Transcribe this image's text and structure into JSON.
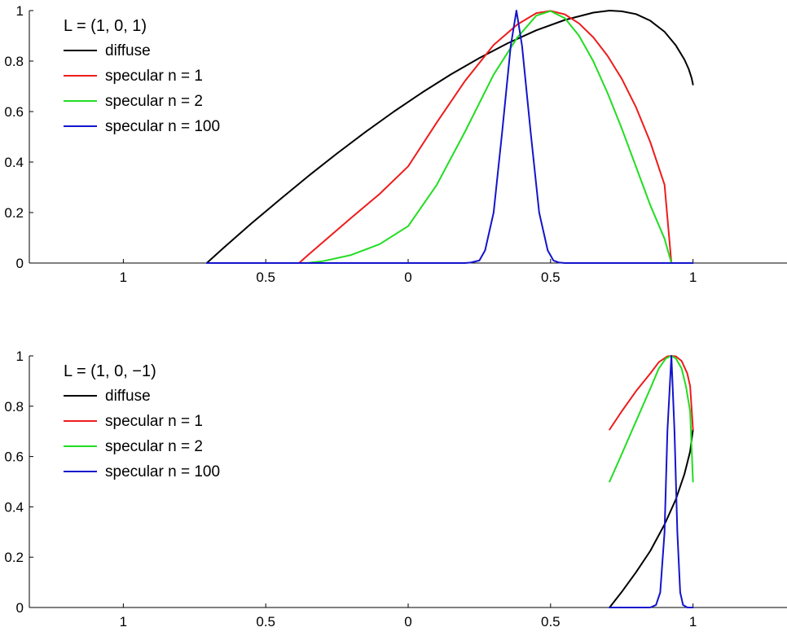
{
  "colors": {
    "diffuse": "#000000",
    "specular_n1": "#ee1c1c",
    "specular_n2": "#22dd22",
    "specular_n100": "#1414cc",
    "axis": "#000000",
    "background": "#ffffff"
  },
  "chart_data": [
    {
      "type": "line",
      "title": "",
      "legend_title": "L = (1, 0, 1)",
      "legend_placement": "top-left",
      "grid": false,
      "xlabel": "",
      "ylabel": "",
      "xlim": [
        -1.33,
        1.33
      ],
      "ylim": [
        0,
        1
      ],
      "x_ticks": [
        -1,
        -0.5,
        0,
        0.5,
        1
      ],
      "x_tick_labels": [
        "1",
        "0.5",
        "0",
        "0.5",
        "1"
      ],
      "y_ticks": [
        0,
        0.2,
        0.4,
        0.6,
        0.8,
        1
      ],
      "y_tick_labels": [
        "0",
        "0.2",
        "0.4",
        "0.6",
        "0.8",
        "1"
      ],
      "series": [
        {
          "name": "diffuse",
          "color_key": "diffuse",
          "points": [
            [
              -0.707,
              0.0
            ],
            [
              -0.65,
              0.058
            ],
            [
              -0.55,
              0.157
            ],
            [
              -0.45,
              0.252
            ],
            [
              -0.35,
              0.345
            ],
            [
              -0.25,
              0.434
            ],
            [
              -0.15,
              0.519
            ],
            [
              -0.05,
              0.6
            ],
            [
              0.05,
              0.676
            ],
            [
              0.15,
              0.747
            ],
            [
              0.25,
              0.812
            ],
            [
              0.35,
              0.871
            ],
            [
              0.45,
              0.922
            ],
            [
              0.55,
              0.963
            ],
            [
              0.65,
              0.992
            ],
            [
              0.707,
              1.0
            ],
            [
              0.75,
              0.997
            ],
            [
              0.8,
              0.986
            ],
            [
              0.85,
              0.96
            ],
            [
              0.9,
              0.916
            ],
            [
              0.94,
              0.862
            ],
            [
              0.97,
              0.806
            ],
            [
              0.985,
              0.768
            ],
            [
              0.995,
              0.733
            ],
            [
              1.0,
              0.707
            ]
          ]
        },
        {
          "name": "specular n = 1",
          "color_key": "specular_n1",
          "points": [
            [
              -0.383,
              0.0
            ],
            [
              -0.35,
              0.033
            ],
            [
              -0.3,
              0.082
            ],
            [
              -0.2,
              0.179
            ],
            [
              -0.1,
              0.274
            ],
            [
              0.0,
              0.383
            ],
            [
              0.1,
              0.556
            ],
            [
              0.2,
              0.722
            ],
            [
              0.3,
              0.864
            ],
            [
              0.383,
              0.945
            ],
            [
              0.45,
              0.99
            ],
            [
              0.5,
              0.999
            ],
            [
              0.55,
              0.985
            ],
            [
              0.6,
              0.949
            ],
            [
              0.65,
              0.894
            ],
            [
              0.7,
              0.821
            ],
            [
              0.75,
              0.73
            ],
            [
              0.8,
              0.617
            ],
            [
              0.85,
              0.479
            ],
            [
              0.9,
              0.31
            ],
            [
              0.924,
              0.0
            ]
          ]
        },
        {
          "name": "specular n = 2",
          "color_key": "specular_n2",
          "points": [
            [
              -0.383,
              0.0
            ],
            [
              -0.35,
              0.001
            ],
            [
              -0.3,
              0.007
            ],
            [
              -0.2,
              0.032
            ],
            [
              -0.1,
              0.075
            ],
            [
              0.0,
              0.146
            ],
            [
              0.1,
              0.309
            ],
            [
              0.2,
              0.521
            ],
            [
              0.3,
              0.746
            ],
            [
              0.383,
              0.893
            ],
            [
              0.45,
              0.98
            ],
            [
              0.5,
              0.998
            ],
            [
              0.55,
              0.97
            ],
            [
              0.6,
              0.9
            ],
            [
              0.65,
              0.799
            ],
            [
              0.7,
              0.674
            ],
            [
              0.75,
              0.533
            ],
            [
              0.8,
              0.381
            ],
            [
              0.85,
              0.229
            ],
            [
              0.9,
              0.096
            ],
            [
              0.924,
              0.0
            ]
          ]
        },
        {
          "name": "specular n = 100",
          "color_key": "specular_n100",
          "points": [
            [
              -0.707,
              0.0
            ],
            [
              0.2,
              0.0
            ],
            [
              0.22,
              0.002
            ],
            [
              0.25,
              0.01
            ],
            [
              0.27,
              0.05
            ],
            [
              0.3,
              0.2
            ],
            [
              0.33,
              0.52
            ],
            [
              0.36,
              0.86
            ],
            [
              0.38,
              1.0
            ],
            [
              0.4,
              0.86
            ],
            [
              0.43,
              0.52
            ],
            [
              0.46,
              0.2
            ],
            [
              0.49,
              0.05
            ],
            [
              0.51,
              0.01
            ],
            [
              0.53,
              0.002
            ],
            [
              0.55,
              0.0
            ],
            [
              1.0,
              0.0
            ]
          ]
        }
      ]
    },
    {
      "type": "line",
      "title": "",
      "legend_title": "L = (1, 0, −1)",
      "legend_placement": "top-left",
      "grid": false,
      "xlabel": "",
      "ylabel": "",
      "xlim": [
        -1.33,
        1.33
      ],
      "ylim": [
        0,
        1
      ],
      "x_ticks": [
        -1,
        -0.5,
        0,
        0.5,
        1
      ],
      "x_tick_labels": [
        "1",
        "0.5",
        "0",
        "0.5",
        "1"
      ],
      "y_ticks": [
        0,
        0.2,
        0.4,
        0.6,
        0.8,
        1
      ],
      "y_tick_labels": [
        "0",
        "0.2",
        "0.4",
        "0.6",
        "0.8",
        "1"
      ],
      "series": [
        {
          "name": "diffuse",
          "color_key": "diffuse",
          "points": [
            [
              0.707,
              0.0
            ],
            [
              0.75,
              0.062
            ],
            [
              0.8,
              0.14
            ],
            [
              0.85,
              0.225
            ],
            [
              0.9,
              0.33
            ],
            [
              0.94,
              0.43
            ],
            [
              0.97,
              0.53
            ],
            [
              0.99,
              0.62
            ],
            [
              1.0,
              0.707
            ]
          ]
        },
        {
          "name": "specular n = 1",
          "color_key": "specular_n1",
          "points": [
            [
              0.707,
              0.707
            ],
            [
              0.75,
              0.78
            ],
            [
              0.8,
              0.86
            ],
            [
              0.85,
              0.93
            ],
            [
              0.88,
              0.975
            ],
            [
              0.91,
              0.998
            ],
            [
              0.924,
              1.0
            ],
            [
              0.94,
              0.998
            ],
            [
              0.96,
              0.98
            ],
            [
              0.98,
              0.93
            ],
            [
              0.99,
              0.88
            ],
            [
              1.0,
              0.707
            ]
          ]
        },
        {
          "name": "specular n = 2",
          "color_key": "specular_n2",
          "points": [
            [
              0.707,
              0.5
            ],
            [
              0.75,
              0.61
            ],
            [
              0.8,
              0.74
            ],
            [
              0.85,
              0.87
            ],
            [
              0.88,
              0.95
            ],
            [
              0.905,
              0.99
            ],
            [
              0.924,
              1.0
            ],
            [
              0.94,
              0.99
            ],
            [
              0.96,
              0.95
            ],
            [
              0.975,
              0.88
            ],
            [
              0.99,
              0.78
            ],
            [
              1.0,
              0.5
            ]
          ]
        },
        {
          "name": "specular n = 100",
          "color_key": "specular_n100",
          "points": [
            [
              0.707,
              0.0
            ],
            [
              0.85,
              0.0
            ],
            [
              0.87,
              0.01
            ],
            [
              0.885,
              0.06
            ],
            [
              0.9,
              0.3
            ],
            [
              0.91,
              0.7
            ],
            [
              0.924,
              1.0
            ],
            [
              0.935,
              0.7
            ],
            [
              0.945,
              0.3
            ],
            [
              0.955,
              0.06
            ],
            [
              0.965,
              0.01
            ],
            [
              0.98,
              0.0
            ],
            [
              1.0,
              0.0
            ]
          ]
        }
      ]
    }
  ]
}
